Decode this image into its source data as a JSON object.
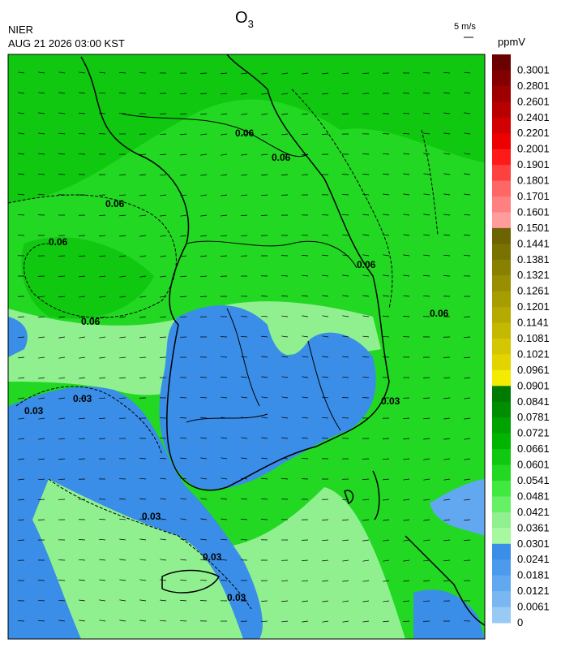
{
  "header": {
    "title": "O",
    "title_subscript": "3",
    "agency": "NIER",
    "timestamp": "AUG 21 2026 03:00 KST",
    "wind_scale": "5 m/s",
    "unit": "ppmV"
  },
  "contour_levels": [
    0.03,
    0.06
  ],
  "colorbar": {
    "levels": [
      0.3001,
      0.2801,
      0.2601,
      0.2401,
      0.2201,
      0.2001,
      0.1901,
      0.1801,
      0.1701,
      0.1601,
      0.1501,
      0.1441,
      0.1381,
      0.1321,
      0.1261,
      0.1201,
      0.1141,
      0.1081,
      0.1021,
      0.0961,
      0.0901,
      0.0841,
      0.0781,
      0.0721,
      0.0661,
      0.0601,
      0.0541,
      0.0481,
      0.0421,
      0.0361,
      0.0301,
      0.0241,
      0.0181,
      0.0121,
      0.0061,
      0
    ],
    "colors": [
      "#6a0000",
      "#840000",
      "#9e0000",
      "#b80000",
      "#d20000",
      "#ec0000",
      "#ff1a1a",
      "#ff4040",
      "#ff6666",
      "#ff8080",
      "#ff9c9c",
      "#6b6400",
      "#7a7200",
      "#898000",
      "#988e00",
      "#a79c00",
      "#b6aa00",
      "#c5b800",
      "#d4c600",
      "#e3d400",
      "#f5eb00",
      "#007a00",
      "#008e00",
      "#00a200",
      "#00b400",
      "#10c810",
      "#22d822",
      "#40e840",
      "#66f066",
      "#90f090",
      "#a8f8a0",
      "#3a8ee8",
      "#4c9aec",
      "#62a8f0",
      "#7ab6f2",
      "#98caf4"
    ]
  }
}
